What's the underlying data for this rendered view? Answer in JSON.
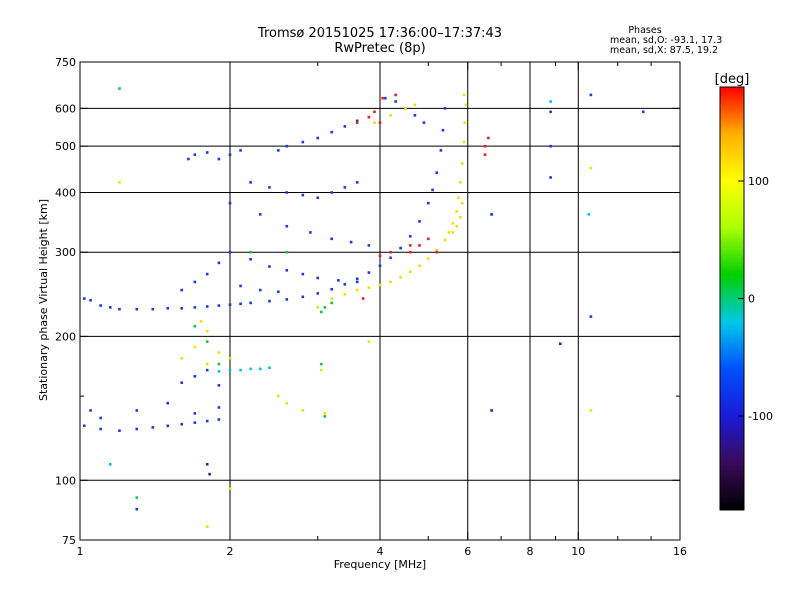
{
  "title": "Tromsø 20151025 17:36:00–17:37:43",
  "subtitle": "RwPretec (8p)",
  "stats": {
    "heading": "Phases",
    "line_o": "mean, sd,O: -93.1, 17.3",
    "line_x": "mean, sd,X:  87.5, 19.2"
  },
  "chart_data": {
    "type": "scatter",
    "xlabel": "Frequency [MHz]",
    "ylabel": "Stationary phase Virtual Height [km]",
    "xscale": "log",
    "yscale": "log",
    "xlim": [
      1,
      16
    ],
    "ylim": [
      75,
      750
    ],
    "xticks": [
      1,
      2,
      4,
      6,
      8,
      10,
      16
    ],
    "xtick_labels": [
      "1",
      "2",
      "4",
      "6",
      "8",
      "10",
      "16"
    ],
    "xgrid": [
      2,
      4,
      6,
      8,
      10
    ],
    "xminor": [
      3,
      5,
      7,
      9,
      12,
      14
    ],
    "yticks": [
      75,
      100,
      200,
      300,
      400,
      500,
      600,
      750
    ],
    "ytick_labels": [
      "75",
      "100",
      "200",
      "300",
      "400",
      "500",
      "600",
      "750"
    ],
    "yminor": [
      150
    ],
    "colorbar": {
      "label": "[deg]",
      "range": [
        -180,
        180
      ],
      "ticks": [
        -100,
        0,
        100
      ],
      "tick_labels": [
        "-100",
        "0",
        "100"
      ],
      "colors": [
        "#000000",
        "#3a0a5a",
        "#1a1ad8",
        "#0050ff",
        "#00c8e8",
        "#00d000",
        "#aaff00",
        "#ffff00",
        "#ffb000",
        "#ff0000"
      ]
    },
    "series": [
      {
        "id": "o-mode-trace",
        "phase": -100,
        "color": "#1a3ae0",
        "points": [
          [
            1.02,
            240
          ],
          [
            1.05,
            238
          ],
          [
            1.1,
            232
          ],
          [
            1.15,
            230
          ],
          [
            1.2,
            228
          ],
          [
            1.3,
            228
          ],
          [
            1.4,
            228
          ],
          [
            1.5,
            229
          ],
          [
            1.6,
            229
          ],
          [
            1.7,
            230
          ],
          [
            1.8,
            231
          ],
          [
            1.9,
            232
          ],
          [
            2.0,
            233
          ],
          [
            2.1,
            234
          ],
          [
            2.2,
            235
          ],
          [
            2.4,
            237
          ],
          [
            2.6,
            239
          ],
          [
            2.8,
            242
          ],
          [
            3.0,
            246
          ],
          [
            3.2,
            251
          ],
          [
            3.4,
            257
          ],
          [
            3.6,
            264
          ],
          [
            3.8,
            272
          ],
          [
            4.0,
            281
          ],
          [
            4.2,
            292
          ],
          [
            4.4,
            306
          ],
          [
            4.6,
            324
          ],
          [
            4.8,
            348
          ],
          [
            5.0,
            380
          ],
          [
            5.1,
            405
          ],
          [
            5.2,
            440
          ],
          [
            5.3,
            490
          ],
          [
            5.35,
            540
          ],
          [
            5.4,
            600
          ],
          [
            1.02,
            130
          ],
          [
            1.1,
            128
          ],
          [
            1.2,
            127
          ],
          [
            1.3,
            128
          ],
          [
            1.4,
            129
          ],
          [
            1.5,
            130
          ],
          [
            1.6,
            131
          ],
          [
            1.7,
            132
          ],
          [
            1.8,
            133
          ],
          [
            1.9,
            134
          ],
          [
            1.05,
            140
          ],
          [
            1.1,
            135
          ],
          [
            1.3,
            140
          ],
          [
            1.5,
            145
          ],
          [
            1.7,
            138
          ],
          [
            1.9,
            142
          ],
          [
            1.6,
            160
          ],
          [
            1.7,
            165
          ],
          [
            1.8,
            170
          ],
          [
            1.9,
            158
          ],
          [
            1.65,
            470
          ],
          [
            1.7,
            480
          ],
          [
            1.8,
            485
          ],
          [
            1.9,
            470
          ],
          [
            2.0,
            480
          ],
          [
            2.1,
            490
          ],
          [
            2.5,
            490
          ],
          [
            2.6,
            500
          ],
          [
            2.8,
            510
          ],
          [
            3.0,
            520
          ],
          [
            3.2,
            535
          ],
          [
            3.4,
            550
          ],
          [
            3.6,
            565
          ],
          [
            2.2,
            420
          ],
          [
            2.4,
            410
          ],
          [
            2.6,
            400
          ],
          [
            2.8,
            395
          ],
          [
            3.0,
            390
          ],
          [
            3.2,
            400
          ],
          [
            3.4,
            410
          ],
          [
            3.6,
            420
          ],
          [
            2.0,
            380
          ],
          [
            2.3,
            360
          ],
          [
            2.6,
            340
          ],
          [
            2.9,
            330
          ],
          [
            3.2,
            320
          ],
          [
            3.5,
            315
          ],
          [
            3.8,
            310
          ],
          [
            2.0,
            300
          ],
          [
            2.2,
            290
          ],
          [
            2.4,
            280
          ],
          [
            2.6,
            275
          ],
          [
            2.8,
            270
          ],
          [
            3.0,
            265
          ],
          [
            3.3,
            262
          ],
          [
            3.6,
            260
          ],
          [
            1.6,
            250
          ],
          [
            1.7,
            260
          ],
          [
            1.8,
            270
          ],
          [
            1.9,
            285
          ],
          [
            2.1,
            255
          ],
          [
            2.3,
            250
          ],
          [
            2.5,
            248
          ],
          [
            4.1,
            630
          ],
          [
            4.3,
            620
          ],
          [
            4.5,
            600
          ],
          [
            4.7,
            580
          ],
          [
            4.9,
            560
          ]
        ]
      },
      {
        "id": "x-mode-trace",
        "phase": 100,
        "color": "#f0e000",
        "points": [
          [
            3.0,
            230
          ],
          [
            3.2,
            240
          ],
          [
            3.4,
            245
          ],
          [
            3.6,
            250
          ],
          [
            3.8,
            253
          ],
          [
            4.0,
            256
          ],
          [
            4.2,
            260
          ],
          [
            4.4,
            266
          ],
          [
            4.6,
            273
          ],
          [
            4.8,
            281
          ],
          [
            5.0,
            291
          ],
          [
            5.2,
            303
          ],
          [
            5.4,
            318
          ],
          [
            5.5,
            330
          ],
          [
            5.6,
            345
          ],
          [
            5.7,
            365
          ],
          [
            5.75,
            390
          ],
          [
            5.8,
            420
          ],
          [
            5.85,
            460
          ],
          [
            5.9,
            510
          ],
          [
            5.92,
            560
          ],
          [
            5.95,
            610
          ],
          [
            5.9,
            640
          ],
          [
            5.6,
            330
          ],
          [
            5.7,
            340
          ],
          [
            5.8,
            355
          ],
          [
            5.85,
            380
          ],
          [
            4.5,
            600
          ],
          [
            4.7,
            610
          ],
          [
            4.2,
            580
          ],
          [
            3.9,
            560
          ],
          [
            1.6,
            180
          ],
          [
            1.7,
            190
          ],
          [
            1.8,
            175
          ],
          [
            1.9,
            185
          ],
          [
            2.0,
            180
          ],
          [
            1.75,
            215
          ],
          [
            1.8,
            205
          ],
          [
            2.6,
            145
          ],
          [
            2.8,
            140
          ],
          [
            3.1,
            138
          ],
          [
            3.05,
            170
          ],
          [
            2.5,
            150
          ]
        ]
      },
      {
        "id": "mixed-high-echoes",
        "phase": 170,
        "color": "#e82020",
        "points": [
          [
            3.6,
            560
          ],
          [
            3.8,
            575
          ],
          [
            3.9,
            590
          ],
          [
            4.6,
            300
          ],
          [
            4.8,
            310
          ],
          [
            5.0,
            320
          ],
          [
            5.2,
            300
          ],
          [
            4.0,
            295
          ],
          [
            4.2,
            300
          ],
          [
            6.5,
            500
          ],
          [
            6.6,
            520
          ],
          [
            3.7,
            240
          ],
          [
            4.0,
            560
          ],
          [
            4.6,
            310
          ]
        ]
      },
      {
        "id": "green-scatter",
        "phase": 20,
        "color": "#10c840",
        "points": [
          [
            3.05,
            225
          ],
          [
            3.1,
            230
          ],
          [
            3.2,
            235
          ],
          [
            3.05,
            175
          ],
          [
            1.7,
            210
          ],
          [
            1.8,
            195
          ],
          [
            1.9,
            175
          ],
          [
            2.2,
            300
          ],
          [
            2.6,
            300
          ],
          [
            3.1,
            136
          ],
          [
            1.3,
            92
          ],
          [
            1.2,
            660
          ]
        ]
      },
      {
        "id": "cyan-scatter",
        "phase": -30,
        "color": "#00c0f0",
        "points": [
          [
            2.0,
            170
          ],
          [
            2.1,
            170
          ],
          [
            2.2,
            171
          ],
          [
            2.3,
            171
          ],
          [
            2.4,
            172
          ],
          [
            1.9,
            169
          ],
          [
            8.8,
            620
          ],
          [
            6.7,
            360
          ],
          [
            1.15,
            108
          ],
          [
            10.5,
            360
          ]
        ]
      },
      {
        "id": "purple-outliers",
        "phase": -150,
        "color": "#5a10a0",
        "points": [
          [
            9.2,
            193
          ],
          [
            6.7,
            140
          ],
          [
            1.8,
            108
          ],
          [
            1.82,
            103
          ]
        ]
      },
      {
        "id": "blue-outliers",
        "phase": -100,
        "color": "#1a3ae0",
        "points": [
          [
            8.8,
            590
          ],
          [
            10.6,
            640
          ],
          [
            13.5,
            590
          ],
          [
            8.8,
            500
          ],
          [
            8.8,
            430
          ],
          [
            10.6,
            220
          ],
          [
            6.7,
            360
          ],
          [
            1.3,
            87
          ]
        ]
      },
      {
        "id": "yellow-outliers",
        "phase": 100,
        "color": "#f0e000",
        "points": [
          [
            10.6,
            450
          ],
          [
            10.6,
            140
          ],
          [
            1.2,
            420
          ],
          [
            2.0,
            96
          ],
          [
            1.8,
            80
          ],
          [
            3.8,
            195
          ]
        ]
      },
      {
        "id": "red-outliers",
        "phase": 170,
        "color": "#e82020",
        "points": [
          [
            6.5,
            480
          ],
          [
            4.05,
            630
          ],
          [
            4.3,
            640
          ]
        ]
      }
    ]
  }
}
